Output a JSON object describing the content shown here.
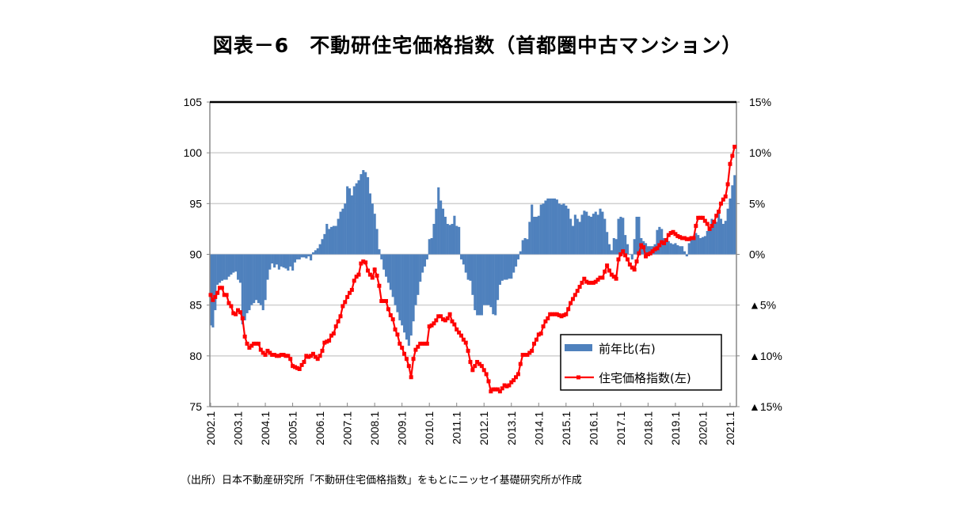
{
  "title": "図表－6　不動研住宅価格指数（首都圏中古マンション）",
  "source": "（出所）日本不動産研究所「不動研住宅価格指数」をもとにニッセイ基礎研究所が作成",
  "chart_data": {
    "type": "bar+line",
    "x_start": "2002.1",
    "x_frequency": "monthly",
    "x_tick_labels": [
      "2002.1",
      "2003.1",
      "2004.1",
      "2005.1",
      "2006.1",
      "2007.1",
      "2008.1",
      "2009.1",
      "2010.1",
      "2011.1",
      "2012.1",
      "2013.1",
      "2014.1",
      "2015.1",
      "2016.1",
      "2017.1",
      "2018.1",
      "2019.1",
      "2020.1",
      "2021.1"
    ],
    "y_left": {
      "range": [
        75,
        105
      ],
      "ticks": [
        "75",
        "80",
        "85",
        "90",
        "95",
        "100",
        "105"
      ]
    },
    "y_right": {
      "range": [
        -15,
        15
      ],
      "ticks": [
        "▲15%",
        "▲10%",
        "▲5%",
        "0%",
        "5%",
        "10%",
        "15%"
      ]
    },
    "grid": true,
    "legend_position": "bottom-right",
    "colors": {
      "bar": "#4f81bd",
      "line": "#ff0000"
    },
    "series": [
      {
        "name": "前年比(右)",
        "type": "bar",
        "axis": "right",
        "unit": "%",
        "values": [
          -7.0,
          -7.2,
          -5.5,
          -3.0,
          -2.8,
          -2.6,
          -2.5,
          -2.5,
          -2.2,
          -2.0,
          -1.8,
          -1.7,
          -2.5,
          -2.8,
          -6.9,
          -6.5,
          -5.8,
          -5.5,
          -5.0,
          -4.8,
          -4.5,
          -4.8,
          -5.0,
          -5.5,
          -4.5,
          -2.5,
          -1.5,
          -0.9,
          -1.3,
          -1.0,
          -1.5,
          -1.2,
          -1.3,
          -1.4,
          -1.6,
          -1.2,
          -1.6,
          -0.8,
          -0.5,
          -0.5,
          -0.3,
          -0.3,
          -0.4,
          -0.2,
          -0.6,
          0.2,
          0.4,
          0.6,
          1.0,
          1.5,
          2.0,
          3.0,
          2.5,
          2.7,
          2.8,
          2.8,
          3.5,
          4.2,
          4.5,
          5.0,
          6.7,
          6.5,
          5.8,
          6.7,
          7.0,
          7.3,
          7.9,
          8.3,
          8.1,
          7.6,
          6.0,
          5.0,
          4.0,
          2.5,
          0.5,
          -0.5,
          -1.5,
          -2.2,
          -2.8,
          -3.5,
          -4.2,
          -5.0,
          -5.7,
          -6.5,
          -7.0,
          -7.7,
          -8.4,
          -9.0,
          -8.0,
          -6.6,
          -5.0,
          -4.0,
          -2.7,
          -1.8,
          -1.2,
          -0.5,
          1.5,
          1.6,
          3.0,
          4.5,
          6.6,
          5.3,
          4.5,
          3.7,
          3.0,
          2.9,
          3.0,
          3.8,
          2.8,
          2.7,
          -0.5,
          -1.0,
          -1.8,
          -2.5,
          -2.6,
          -4.0,
          -5.5,
          -6.0,
          -6.0,
          -6.0,
          -5.0,
          -5.0,
          -5.0,
          -5.2,
          -5.9,
          -6.0,
          -4.5,
          -3.0,
          -2.6,
          -2.5,
          -2.5,
          -2.4,
          -2.4,
          -1.8,
          -1.2,
          -0.5,
          0.3,
          1.4,
          1.6,
          1.5,
          3.2,
          4.9,
          3.7,
          3.7,
          3.8,
          4.9,
          5.0,
          5.3,
          5.5,
          5.5,
          5.5,
          5.5,
          5.4,
          5.0,
          4.9,
          5.0,
          4.8,
          4.5,
          3.5,
          2.8,
          3.9,
          3.5,
          3.2,
          3.9,
          4.3,
          4.2,
          3.8,
          3.7,
          4.0,
          4.2,
          3.9,
          4.5,
          4.2,
          3.5,
          2.2,
          1.0,
          0.4,
          1.6,
          1.5,
          3.5,
          3.7,
          3.6,
          1.9,
          1.0,
          0.0,
          -0.5,
          1.5,
          3.7,
          3.7,
          1.6,
          1.3,
          1.1,
          0.8,
          0.8,
          0.8,
          1.0,
          2.4,
          2.7,
          2.5,
          1.6,
          1.4,
          1.3,
          1.1,
          1.0,
          1.1,
          0.9,
          0.8,
          0.8,
          0.3,
          -0.2,
          1.1,
          1.6,
          1.8,
          2.1,
          1.9,
          1.6,
          1.7,
          1.8,
          2.3,
          2.7,
          3.5,
          3.0,
          3.2,
          4.2,
          3.5,
          3.0,
          3.3,
          4.5,
          5.5,
          6.8,
          7.8
        ]
      },
      {
        "name": "住宅価格指数(左)",
        "type": "line",
        "axis": "left",
        "values": [
          86.0,
          85.5,
          85.8,
          86.2,
          86.7,
          86.7,
          86.0,
          86.0,
          85.2,
          84.9,
          84.2,
          84.1,
          84.5,
          84.3,
          83.7,
          81.9,
          81.2,
          80.8,
          81.0,
          81.2,
          81.2,
          81.2,
          80.6,
          80.3,
          80.1,
          80.5,
          80.3,
          80.1,
          80.1,
          80.0,
          80.0,
          80.1,
          80.1,
          80.0,
          80.0,
          79.7,
          79.0,
          78.9,
          78.8,
          78.7,
          79.1,
          79.4,
          80.0,
          79.9,
          80.0,
          80.2,
          79.9,
          79.7,
          80.0,
          80.5,
          81.3,
          81.4,
          81.5,
          82.0,
          82.2,
          82.9,
          83.4,
          83.9,
          84.9,
          85.3,
          85.8,
          86.2,
          86.5,
          87.4,
          87.8,
          88.0,
          89.1,
          89.3,
          89.2,
          88.4,
          88.0,
          87.7,
          88.5,
          87.9,
          86.9,
          85.4,
          85.4,
          85.4,
          84.6,
          84.0,
          83.6,
          82.6,
          82.1,
          81.2,
          80.8,
          80.2,
          79.7,
          79.0,
          77.9,
          79.7,
          80.6,
          80.9,
          81.2,
          81.2,
          81.2,
          81.2,
          82.9,
          83.0,
          83.2,
          83.5,
          83.9,
          83.9,
          83.6,
          83.5,
          83.7,
          84.1,
          83.4,
          83.1,
          82.6,
          82.3,
          82.0,
          81.6,
          81.3,
          80.5,
          79.4,
          78.6,
          79.0,
          79.4,
          79.2,
          79.0,
          78.6,
          78.2,
          77.5,
          76.5,
          76.7,
          76.7,
          76.7,
          76.5,
          76.8,
          77.1,
          77.0,
          77.1,
          77.4,
          77.6,
          77.9,
          78.2,
          79.2,
          80.1,
          80.1,
          80.1,
          80.3,
          80.5,
          81.2,
          81.6,
          82.1,
          82.2,
          82.9,
          83.4,
          83.7,
          84.1,
          84.1,
          84.1,
          84.1,
          84.0,
          83.9,
          84.0,
          84.1,
          84.6,
          85.2,
          85.6,
          86.0,
          86.4,
          86.8,
          87.2,
          87.6,
          87.3,
          87.2,
          87.2,
          87.2,
          87.3,
          87.5,
          87.7,
          87.7,
          88.3,
          88.9,
          88.4,
          88.0,
          87.8,
          87.6,
          89.5,
          90.0,
          90.3,
          89.9,
          89.5,
          89.0,
          88.7,
          88.5,
          89.3,
          90.1,
          90.9,
          90.7,
          89.8,
          90.0,
          90.1,
          90.3,
          90.5,
          90.6,
          90.9,
          91.2,
          91.1,
          91.4,
          91.9,
          92.1,
          92.2,
          92.0,
          91.8,
          91.7,
          91.6,
          91.6,
          91.5,
          91.5,
          91.6,
          91.6,
          92.8,
          93.6,
          93.6,
          93.6,
          93.3,
          93.0,
          92.5,
          92.8,
          93.2,
          93.8,
          94.2,
          95.0,
          95.4,
          95.7,
          96.9,
          98.9,
          99.7,
          100.6
        ]
      }
    ]
  }
}
